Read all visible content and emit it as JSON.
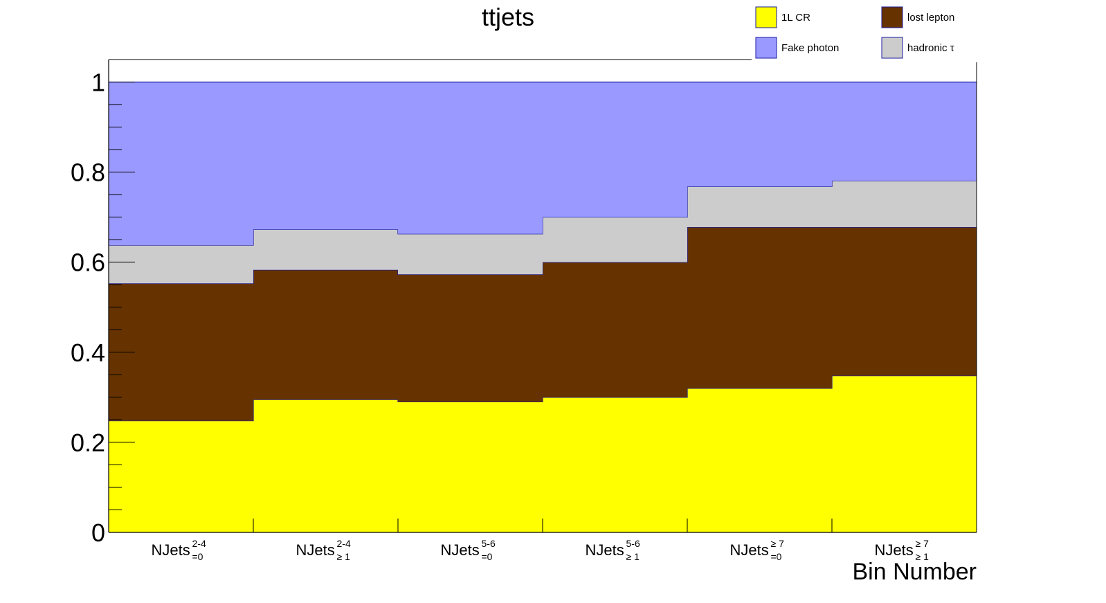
{
  "chart_data": {
    "type": "bar",
    "stacked": true,
    "title": "ttjets",
    "xlabel": "Bin Number",
    "ylabel": "",
    "ylim": [
      0,
      1.05
    ],
    "grid": false,
    "legend_position": "top-right",
    "yticks": [
      "0",
      "0.2",
      "0.4",
      "0.6",
      "0.8",
      "1"
    ],
    "categories": [
      {
        "base": "NJets",
        "sup": "2-4",
        "sub": "=0"
      },
      {
        "base": "NJets",
        "sup": "2-4",
        "sub": "≥ 1"
      },
      {
        "base": "NJets",
        "sup": "5-6",
        "sub": "=0"
      },
      {
        "base": "NJets",
        "sup": "5-6",
        "sub": "≥ 1"
      },
      {
        "base": "NJets",
        "sup": "≥ 7",
        "sub": "=0"
      },
      {
        "base": "NJets",
        "sup": "≥ 7",
        "sub": "≥ 1"
      }
    ],
    "series": [
      {
        "name": "1L CR",
        "color": "#ffff00",
        "values": [
          0.248,
          0.295,
          0.29,
          0.3,
          0.32,
          0.348
        ]
      },
      {
        "name": "lost lepton",
        "color": "#663300",
        "values": [
          0.305,
          0.288,
          0.283,
          0.3,
          0.358,
          0.33
        ]
      },
      {
        "name": "hadronic τ",
        "color": "#cccccc",
        "values": [
          0.085,
          0.09,
          0.09,
          0.1,
          0.09,
          0.103
        ]
      },
      {
        "name": "Fake photon",
        "color": "#9999ff",
        "values": [
          0.362,
          0.327,
          0.337,
          0.3,
          0.232,
          0.219
        ]
      }
    ],
    "legend_order": [
      "1L CR",
      "lost lepton",
      "Fake photon",
      "hadronic τ"
    ]
  }
}
